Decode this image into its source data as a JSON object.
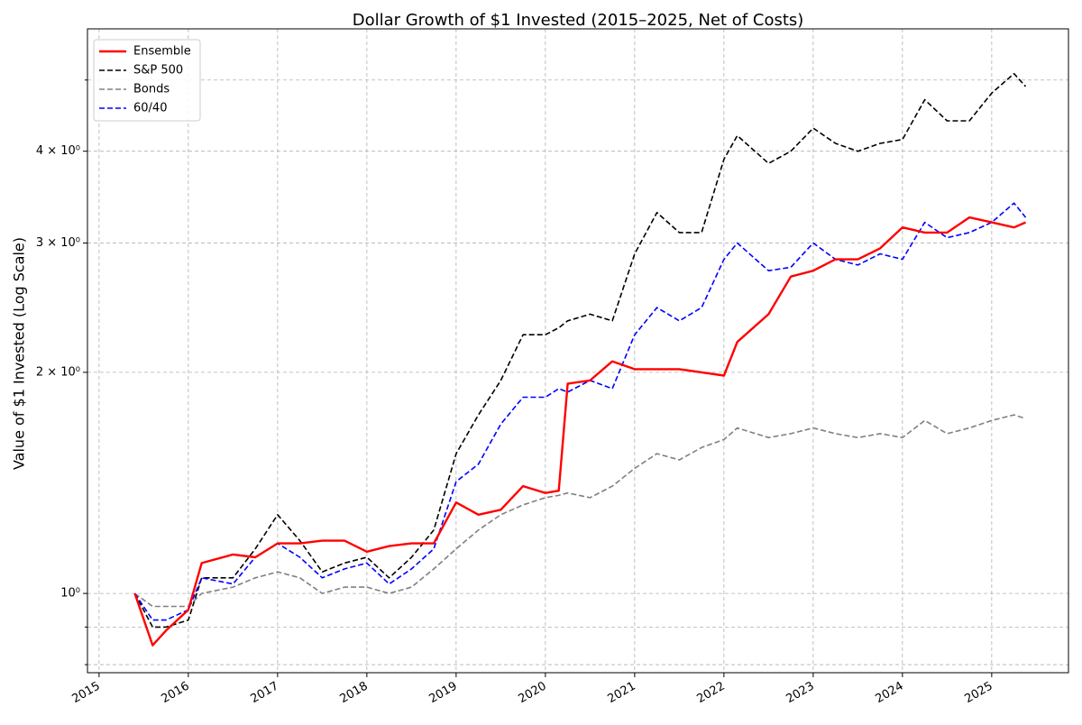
{
  "chart_data": {
    "type": "line",
    "title": "Dollar Growth of $1 Invested (2015–2025, Net of Costs)",
    "y_label": "Value of $1 Invested (Log Scale)",
    "log_y": true,
    "grid": true,
    "legend": "upper left",
    "x": [
      2015.4,
      2015.6,
      2015.75,
      2016.0,
      2016.15,
      2016.5,
      2016.75,
      2017.0,
      2017.25,
      2017.5,
      2017.75,
      2018.0,
      2018.25,
      2018.5,
      2018.75,
      2019.0,
      2019.25,
      2019.5,
      2019.75,
      2020.0,
      2020.15,
      2020.25,
      2020.5,
      2020.75,
      2021.0,
      2021.25,
      2021.5,
      2021.75,
      2022.0,
      2022.15,
      2022.5,
      2022.75,
      2023.0,
      2023.25,
      2023.5,
      2023.75,
      2024.0,
      2024.25,
      2024.5,
      2024.75,
      2025.0,
      2025.25,
      2025.38
    ],
    "xlim": [
      2014.87,
      2025.86
    ],
    "xticks": [
      2015,
      2016,
      2017,
      2018,
      2019,
      2020,
      2021,
      2022,
      2023,
      2024,
      2025
    ],
    "ylim": [
      0.78,
      5.87
    ],
    "yticks": [
      {
        "value": 1,
        "label": "10⁰"
      },
      {
        "value": 2,
        "label": "2 × 10⁰"
      },
      {
        "value": 3,
        "label": "3 × 10⁰"
      },
      {
        "value": 4,
        "label": "4 × 10⁰"
      }
    ],
    "y_minor_ticks": [
      0.8,
      0.9,
      5
    ],
    "series": [
      {
        "name": "Ensemble",
        "color": "#ff0000",
        "dashed": false,
        "values": [
          1.0,
          0.85,
          0.89,
          0.95,
          1.1,
          1.13,
          1.12,
          1.17,
          1.17,
          1.18,
          1.18,
          1.14,
          1.16,
          1.17,
          1.17,
          1.33,
          1.28,
          1.3,
          1.4,
          1.37,
          1.38,
          1.93,
          1.95,
          2.07,
          2.02,
          2.02,
          2.02,
          2.0,
          1.98,
          2.2,
          2.4,
          2.7,
          2.75,
          2.85,
          2.85,
          2.95,
          3.15,
          3.1,
          3.1,
          3.25,
          3.2,
          3.15,
          3.2
        ]
      },
      {
        "name": "S&P 500",
        "color": "#000000",
        "dashed": true,
        "values": [
          1.0,
          0.9,
          0.9,
          0.92,
          1.05,
          1.05,
          1.15,
          1.28,
          1.18,
          1.07,
          1.1,
          1.12,
          1.05,
          1.12,
          1.22,
          1.55,
          1.75,
          1.95,
          2.25,
          2.25,
          2.3,
          2.35,
          2.4,
          2.35,
          2.9,
          3.3,
          3.1,
          3.1,
          3.9,
          4.2,
          3.85,
          4.0,
          4.3,
          4.1,
          4.0,
          4.1,
          4.15,
          4.7,
          4.4,
          4.4,
          4.8,
          5.1,
          4.9
        ]
      },
      {
        "name": "Bonds",
        "color": "#808080",
        "dashed": true,
        "values": [
          1.0,
          0.96,
          0.96,
          0.96,
          1.0,
          1.02,
          1.05,
          1.07,
          1.05,
          1.0,
          1.02,
          1.02,
          1.0,
          1.02,
          1.08,
          1.15,
          1.22,
          1.28,
          1.32,
          1.35,
          1.36,
          1.37,
          1.35,
          1.4,
          1.48,
          1.55,
          1.52,
          1.58,
          1.62,
          1.68,
          1.63,
          1.65,
          1.68,
          1.65,
          1.63,
          1.65,
          1.63,
          1.72,
          1.65,
          1.68,
          1.72,
          1.75,
          1.73
        ]
      },
      {
        "name": "60/40",
        "color": "#0000ff",
        "dashed": true,
        "values": [
          1.0,
          0.92,
          0.92,
          0.95,
          1.05,
          1.03,
          1.12,
          1.17,
          1.12,
          1.05,
          1.08,
          1.1,
          1.03,
          1.08,
          1.15,
          1.42,
          1.5,
          1.7,
          1.85,
          1.85,
          1.9,
          1.88,
          1.95,
          1.9,
          2.25,
          2.45,
          2.35,
          2.45,
          2.85,
          3.0,
          2.75,
          2.78,
          3.0,
          2.85,
          2.8,
          2.9,
          2.85,
          3.2,
          3.05,
          3.1,
          3.2,
          3.4,
          3.25
        ]
      }
    ]
  }
}
